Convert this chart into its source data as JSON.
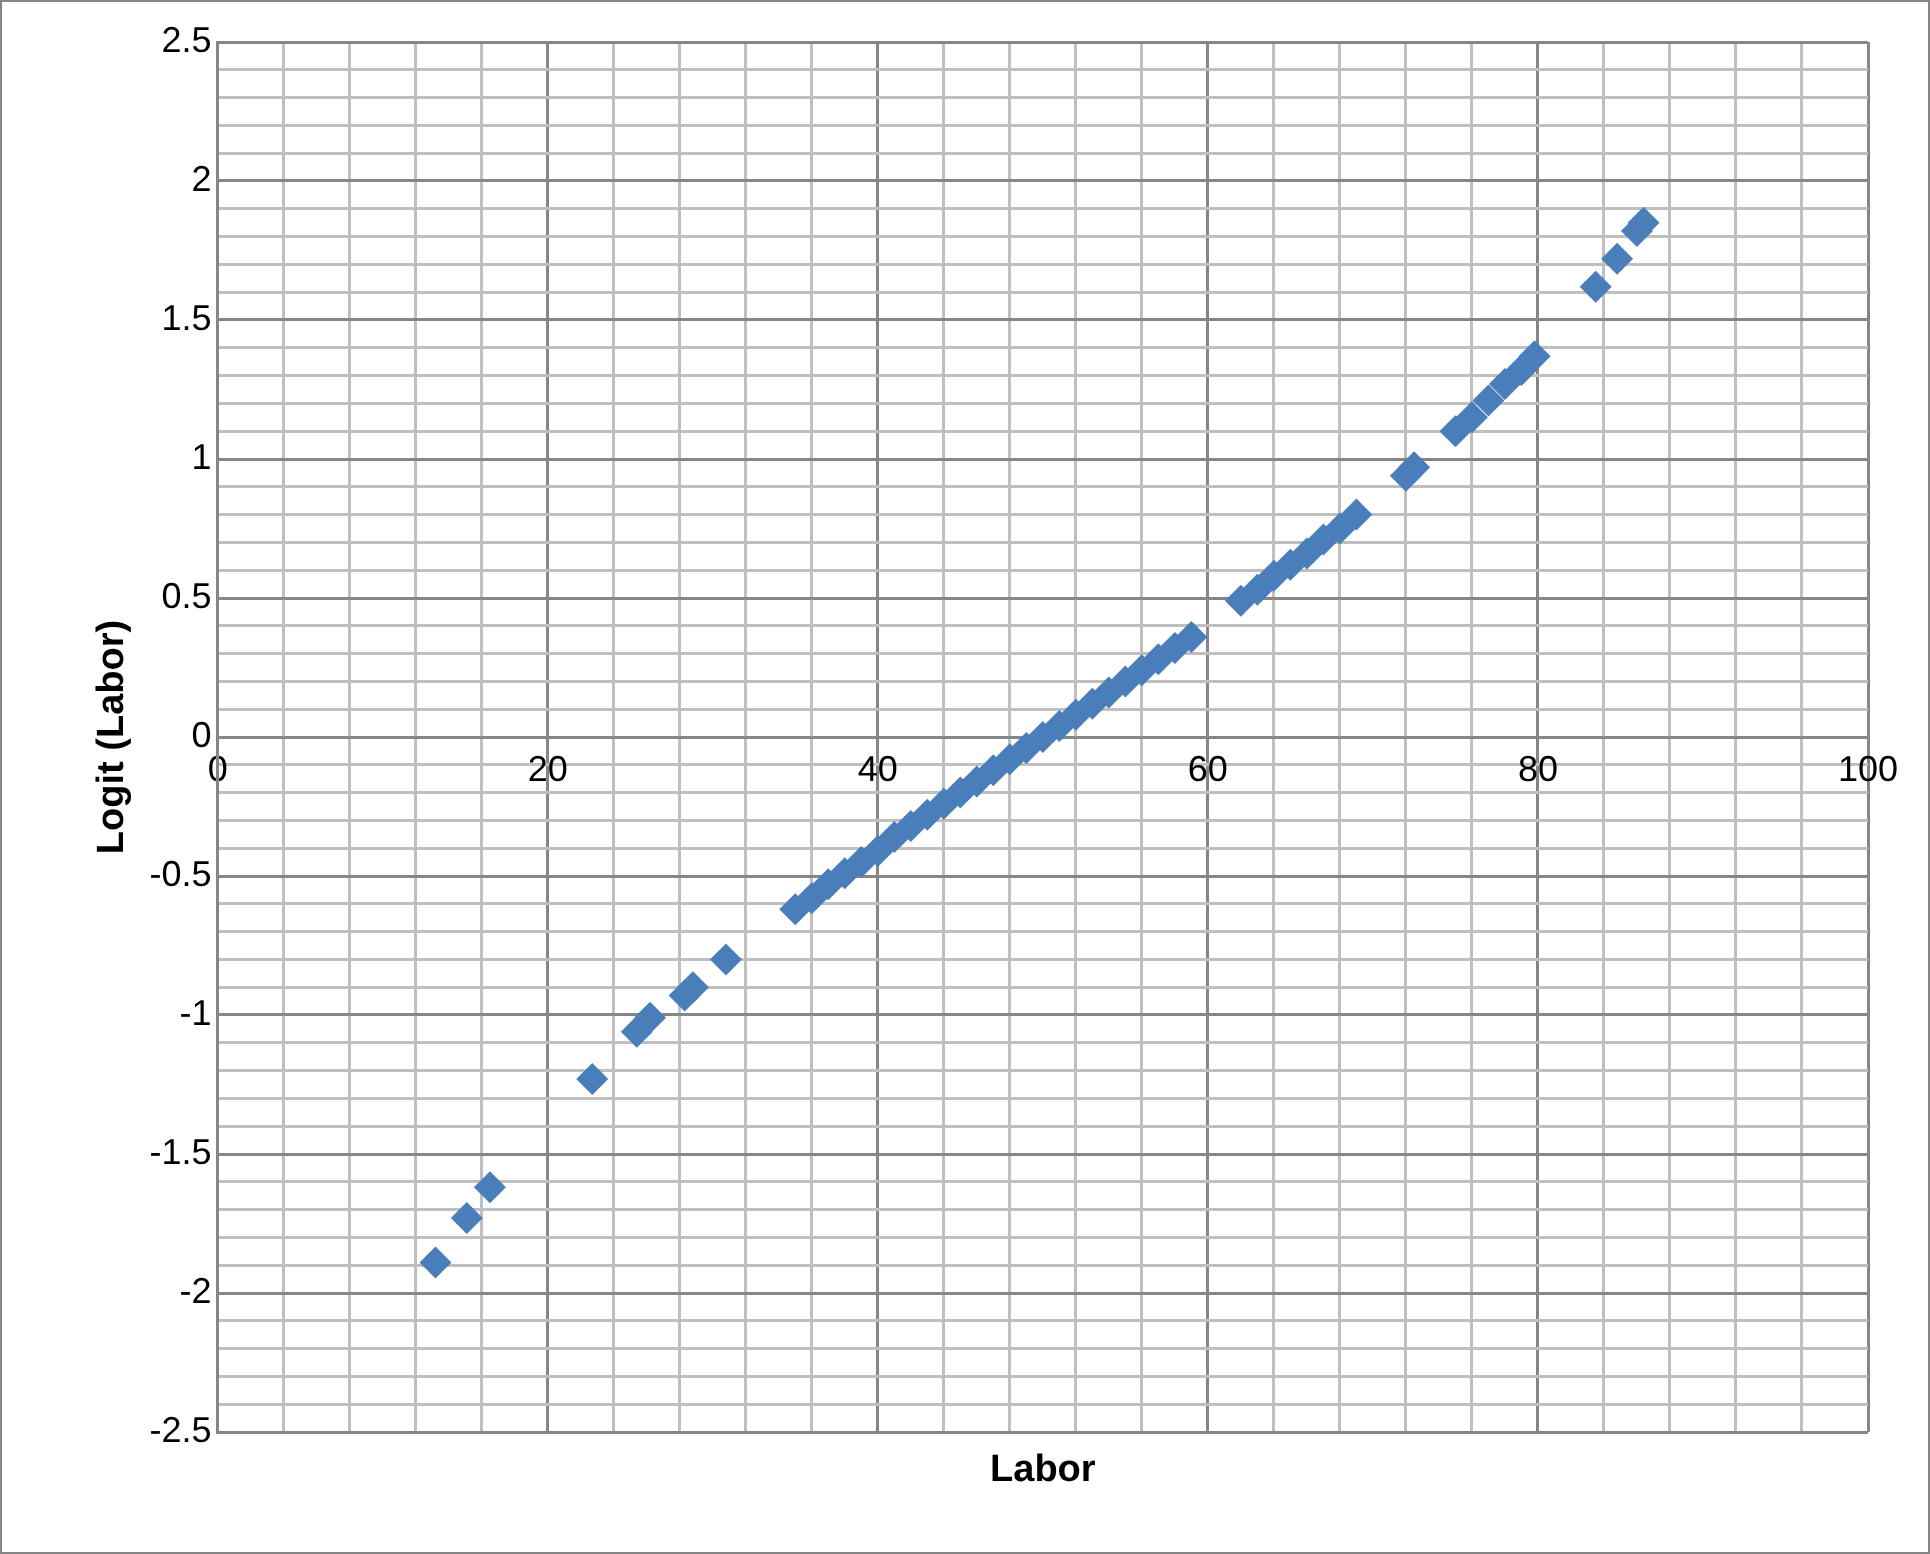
{
  "chart_data": {
    "type": "scatter",
    "xlabel": "Labor",
    "ylabel": "Logit (Labor)",
    "marker": "diamond",
    "grid": true,
    "legend": false,
    "xlim": [
      0,
      100
    ],
    "ylim": [
      -2.5,
      2.5
    ],
    "xticks": [
      0,
      {
        "value": 4,
        "label": null
      },
      {
        "value": 8,
        "label": null
      },
      {
        "value": 12,
        "label": null
      },
      {
        "value": 16,
        "label": null
      },
      20,
      {
        "value": 24,
        "label": null
      },
      {
        "value": 28,
        "label": null
      },
      {
        "value": 32,
        "label": null
      },
      {
        "value": 36,
        "label": null
      },
      40,
      {
        "value": 44,
        "label": null
      },
      {
        "value": 48,
        "label": null
      },
      {
        "value": 52,
        "label": null
      },
      {
        "value": 56,
        "label": null
      },
      60,
      {
        "value": 64,
        "label": null
      },
      {
        "value": 68,
        "label": null
      },
      {
        "value": 72,
        "label": null
      },
      {
        "value": 76,
        "label": null
      },
      80,
      {
        "value": 84,
        "label": null
      },
      {
        "value": 88,
        "label": null
      },
      {
        "value": 92,
        "label": null
      },
      {
        "value": 96,
        "label": null
      },
      100
    ],
    "yticks": [
      -2.5,
      {
        "value": -2.4,
        "label": null
      },
      {
        "value": -2.3,
        "label": null
      },
      {
        "value": -2.2,
        "label": null
      },
      {
        "value": -2.1,
        "label": null
      },
      -2,
      {
        "value": -1.9,
        "label": null
      },
      {
        "value": -1.8,
        "label": null
      },
      {
        "value": -1.7,
        "label": null
      },
      {
        "value": -1.6,
        "label": null
      },
      -1.5,
      {
        "value": -1.4,
        "label": null
      },
      {
        "value": -1.3,
        "label": null
      },
      {
        "value": -1.2,
        "label": null
      },
      {
        "value": -1.1,
        "label": null
      },
      -1,
      {
        "value": -0.9,
        "label": null
      },
      {
        "value": -0.8,
        "label": null
      },
      {
        "value": -0.7,
        "label": null
      },
      {
        "value": -0.6,
        "label": null
      },
      -0.5,
      {
        "value": -0.4,
        "label": null
      },
      {
        "value": -0.3,
        "label": null
      },
      {
        "value": -0.2,
        "label": null
      },
      {
        "value": -0.1,
        "label": null
      },
      0,
      {
        "value": 0.1,
        "label": null
      },
      {
        "value": 0.2,
        "label": null
      },
      {
        "value": 0.3,
        "label": null
      },
      {
        "value": 0.4,
        "label": null
      },
      0.5,
      {
        "value": 0.6,
        "label": null
      },
      {
        "value": 0.7,
        "label": null
      },
      {
        "value": 0.8,
        "label": null
      },
      {
        "value": 0.9,
        "label": null
      },
      1,
      {
        "value": 1.1,
        "label": null
      },
      {
        "value": 1.2,
        "label": null
      },
      {
        "value": 1.3,
        "label": null
      },
      {
        "value": 1.4,
        "label": null
      },
      1.5,
      {
        "value": 1.6,
        "label": null
      },
      {
        "value": 1.7,
        "label": null
      },
      {
        "value": 1.8,
        "label": null
      },
      {
        "value": 1.9,
        "label": null
      },
      2,
      {
        "value": 2.1,
        "label": null
      },
      {
        "value": 2.2,
        "label": null
      },
      {
        "value": 2.3,
        "label": null
      },
      {
        "value": 2.4,
        "label": null
      },
      2.5
    ],
    "series": [
      {
        "color": "#4a7ebb",
        "x": [
          13.2,
          15.1,
          16.5,
          22.7,
          25.4,
          26.2,
          28.3,
          28.8,
          30.8,
          35,
          36,
          37,
          38,
          39,
          40,
          41,
          42,
          43,
          44,
          45,
          46,
          47,
          48,
          49,
          50,
          51,
          52,
          53,
          54,
          55,
          56,
          57,
          58,
          59,
          62,
          63,
          64,
          65,
          66,
          67,
          68,
          69,
          72,
          72.5,
          75,
          76,
          77,
          78,
          79,
          79.8,
          83.5,
          84.8,
          86,
          86.4
        ],
        "values": [
          -1.89,
          -1.73,
          -1.62,
          -1.23,
          -1.06,
          -1.01,
          -0.93,
          -0.9,
          -0.8,
          -0.62,
          -0.58,
          -0.53,
          -0.49,
          -0.45,
          -0.41,
          -0.36,
          -0.32,
          -0.28,
          -0.24,
          -0.2,
          -0.16,
          -0.12,
          -0.08,
          -0.04,
          0,
          0.04,
          0.08,
          0.12,
          0.16,
          0.2,
          0.24,
          0.28,
          0.32,
          0.36,
          0.49,
          0.53,
          0.58,
          0.62,
          0.66,
          0.71,
          0.75,
          0.8,
          0.94,
          0.97,
          1.1,
          1.15,
          1.21,
          1.27,
          1.32,
          1.37,
          1.62,
          1.72,
          1.82,
          1.85
        ]
      }
    ]
  }
}
